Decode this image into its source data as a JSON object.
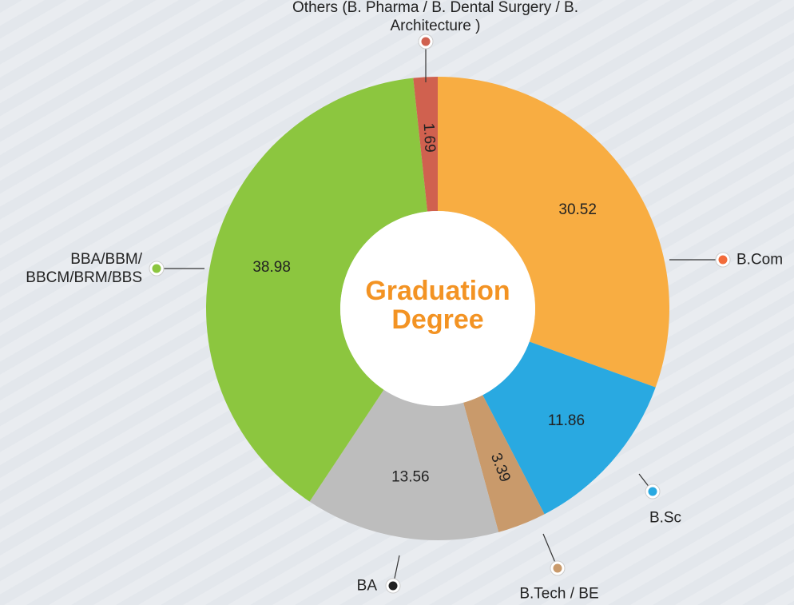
{
  "chart_data": {
    "type": "donut",
    "center_label": "Graduation Degree",
    "categories": [
      "B.Com",
      "B.Sc",
      "B.Tech / BE",
      "BA",
      "BBA/BBM/\nBBCM/BRM/BBS",
      "Others (B. Pharma / B. Dental Surgery / B. Architecture )"
    ],
    "values": [
      30.52,
      11.86,
      3.39,
      13.56,
      38.98,
      1.69
    ],
    "colors": [
      "#f8ad42",
      "#29a9e1",
      "#c99a6b",
      "#bdbdbd",
      "#8cc63f",
      "#d0614f"
    ]
  }
}
